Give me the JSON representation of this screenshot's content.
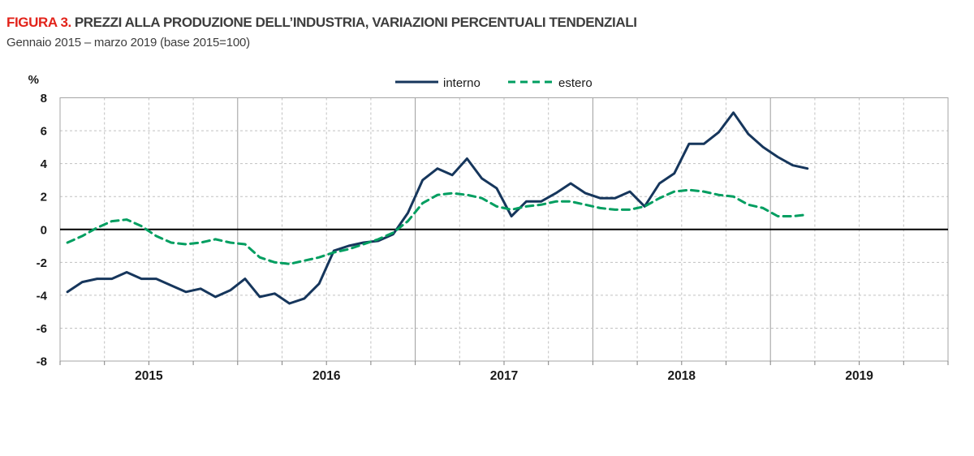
{
  "figure": {
    "label": "FIGURA 3.",
    "title": "PREZZI ALLA PRODUZIONE DELL’INDUSTRIA, VARIAZIONI PERCENTUALI TENDENZIALI",
    "subtitle": "Gennaio 2015 – marzo 2019 (base 2015=100)"
  },
  "chart_data": {
    "type": "line",
    "title": "Prezzi alla produzione dell’industria, variazioni percentuali tendenziali",
    "ylabel": "%",
    "ylim": [
      -8,
      8
    ],
    "yticks": [
      8,
      6,
      4,
      2,
      0,
      -2,
      -4,
      -6,
      -8
    ],
    "x_start": "2015-01",
    "x_end": "2019-03",
    "x_axis_years": [
      "2015",
      "2016",
      "2017",
      "2018",
      "2019"
    ],
    "x_axis_months_shown": 60,
    "grid": {
      "horizontal": "dashed gray every 2 units",
      "vertical": "dashed gray each quarter, solid gray at year start",
      "zero_line": "solid black"
    },
    "legend": {
      "position": "top-center",
      "entries": [
        {
          "label": "interno",
          "style": "solid"
        },
        {
          "label": "estero",
          "style": "dashed"
        }
      ]
    },
    "series": [
      {
        "name": "interno",
        "style": "solid",
        "color": "#16365C",
        "values": [
          -3.8,
          -3.2,
          -3.0,
          -3.0,
          -2.6,
          -3.0,
          -3.0,
          -3.4,
          -3.8,
          -3.6,
          -4.1,
          -3.7,
          -3.0,
          -4.1,
          -3.9,
          -4.5,
          -4.2,
          -3.3,
          -1.3,
          -1.0,
          -0.8,
          -0.7,
          -0.3,
          1.0,
          3.0,
          3.7,
          3.3,
          4.3,
          3.1,
          2.5,
          0.8,
          1.7,
          1.7,
          2.2,
          2.8,
          2.2,
          1.9,
          1.9,
          2.3,
          1.4,
          2.8,
          3.4,
          5.2,
          5.2,
          5.9,
          7.1,
          5.8,
          5.0,
          4.4,
          3.9,
          3.7
        ]
      },
      {
        "name": "estero",
        "style": "dashed",
        "color": "#009E60",
        "values": [
          -0.8,
          -0.4,
          0.1,
          0.5,
          0.6,
          0.2,
          -0.4,
          -0.8,
          -0.9,
          -0.8,
          -0.6,
          -0.8,
          -0.9,
          -1.7,
          -2.0,
          -2.1,
          -1.9,
          -1.7,
          -1.4,
          -1.2,
          -0.9,
          -0.6,
          -0.2,
          0.5,
          1.6,
          2.1,
          2.2,
          2.1,
          1.9,
          1.4,
          1.2,
          1.4,
          1.5,
          1.7,
          1.7,
          1.5,
          1.3,
          1.2,
          1.2,
          1.4,
          1.9,
          2.3,
          2.4,
          2.3,
          2.1,
          2.0,
          1.5,
          1.3,
          0.8,
          0.8,
          0.9
        ]
      }
    ]
  },
  "colors": {
    "figure_label": "#E2231A",
    "title_text": "#3D3D3D",
    "axis_text": "#1A1A1A",
    "grid_dashed": "#C1C1C1",
    "grid_year": "#9C9C9C",
    "plot_border": "#A6A6A6",
    "zero_line": "#000000",
    "tick": "#808080",
    "background": "#FFFFFF"
  }
}
